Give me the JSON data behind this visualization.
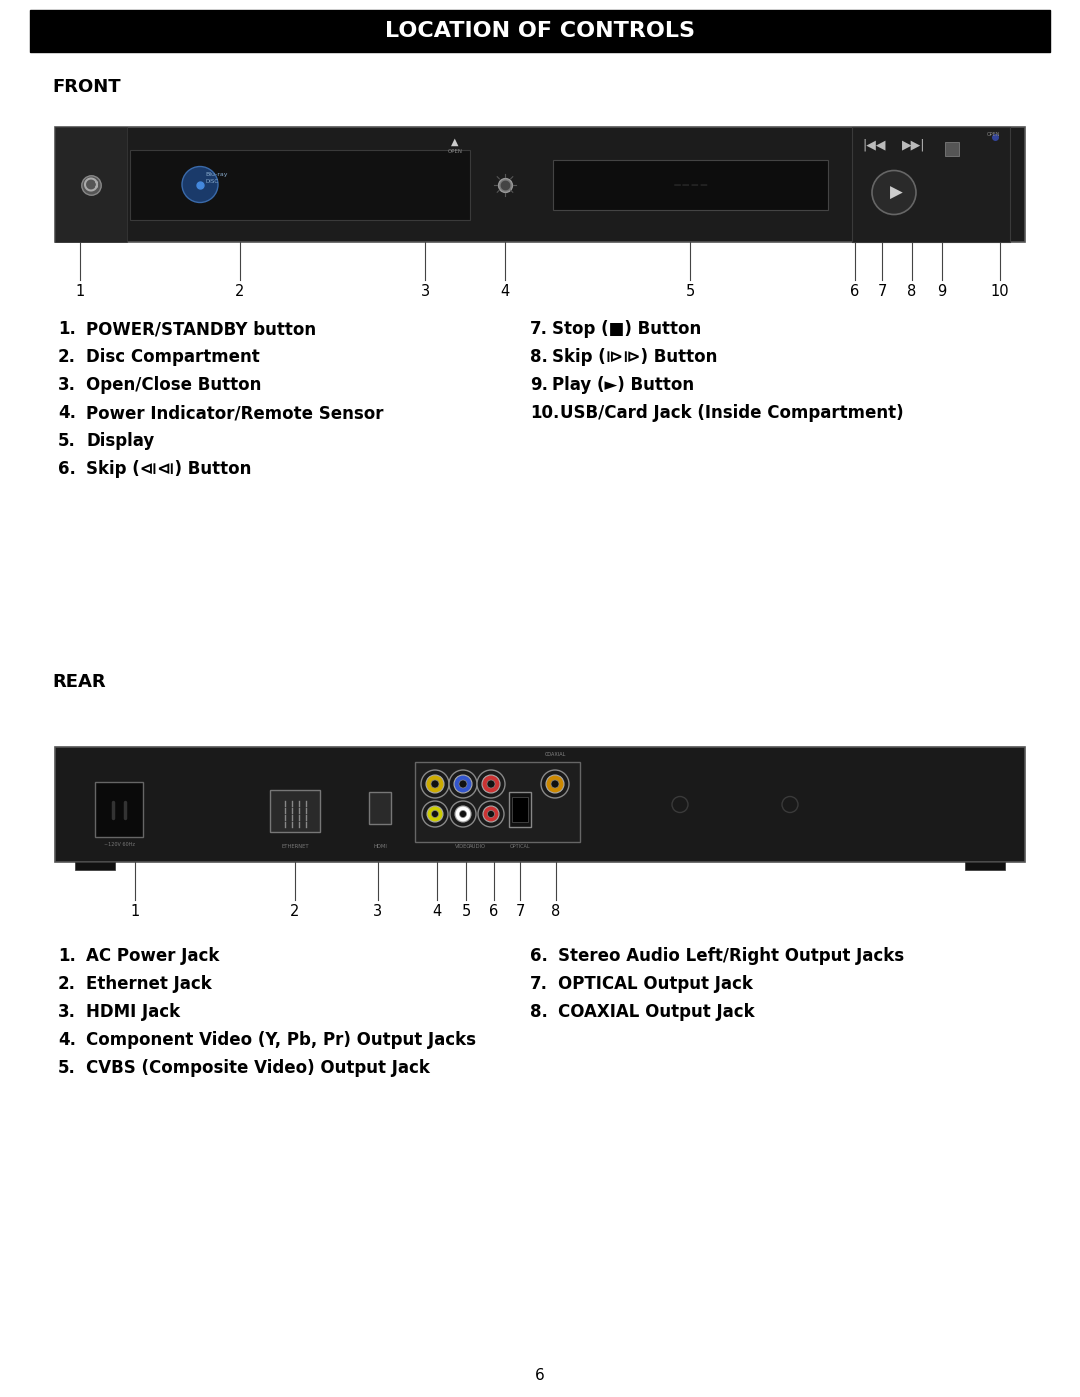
{
  "title": "LOCATION OF CONTROLS",
  "title_bg": "#000000",
  "title_color": "#ffffff",
  "page_bg": "#ffffff",
  "section_front": "FRONT",
  "section_rear": "REAR",
  "front_items_left": [
    [
      "1.",
      "POWER/STANDBY button"
    ],
    [
      "2.",
      "Disc Compartment"
    ],
    [
      "3.",
      "Open/Close Button"
    ],
    [
      "4.",
      "Power Indicator/Remote Sensor"
    ],
    [
      "5.",
      "Display"
    ],
    [
      "6.",
      "Skip (⧏⧏) Button"
    ]
  ],
  "front_items_right": [
    [
      "7.",
      "Stop (■) Button"
    ],
    [
      "8.",
      "Skip (⧐⧐) Button"
    ],
    [
      "9.",
      "Play (►) Button"
    ],
    [
      "10.",
      "USB/Card Jack (Inside Compartment)"
    ]
  ],
  "rear_items_left": [
    [
      "1.",
      "AC Power Jack"
    ],
    [
      "2.",
      "Ethernet Jack"
    ],
    [
      "3.",
      "HDMI Jack"
    ],
    [
      "4.",
      "Component Video (Y, Pb, Pr) Output Jacks"
    ],
    [
      "5.",
      "CVBS (Composite Video) Output Jack"
    ]
  ],
  "rear_items_right": [
    [
      "6.",
      "Stereo Audio Left/Right Output Jacks"
    ],
    [
      "7.",
      "OPTICAL Output Jack"
    ],
    [
      "8.",
      "COAXIAL Output Jack"
    ]
  ],
  "front_numbers": [
    "1",
    "2",
    "3",
    "4",
    "5",
    "6",
    "7",
    "8",
    "9",
    "10"
  ],
  "rear_numbers": [
    "1",
    "2",
    "3",
    "4",
    "5",
    "6",
    "7",
    "8"
  ],
  "page_number": "6",
  "label_fontsize": 12,
  "section_fontsize": 13,
  "number_fontsize": 10.5
}
